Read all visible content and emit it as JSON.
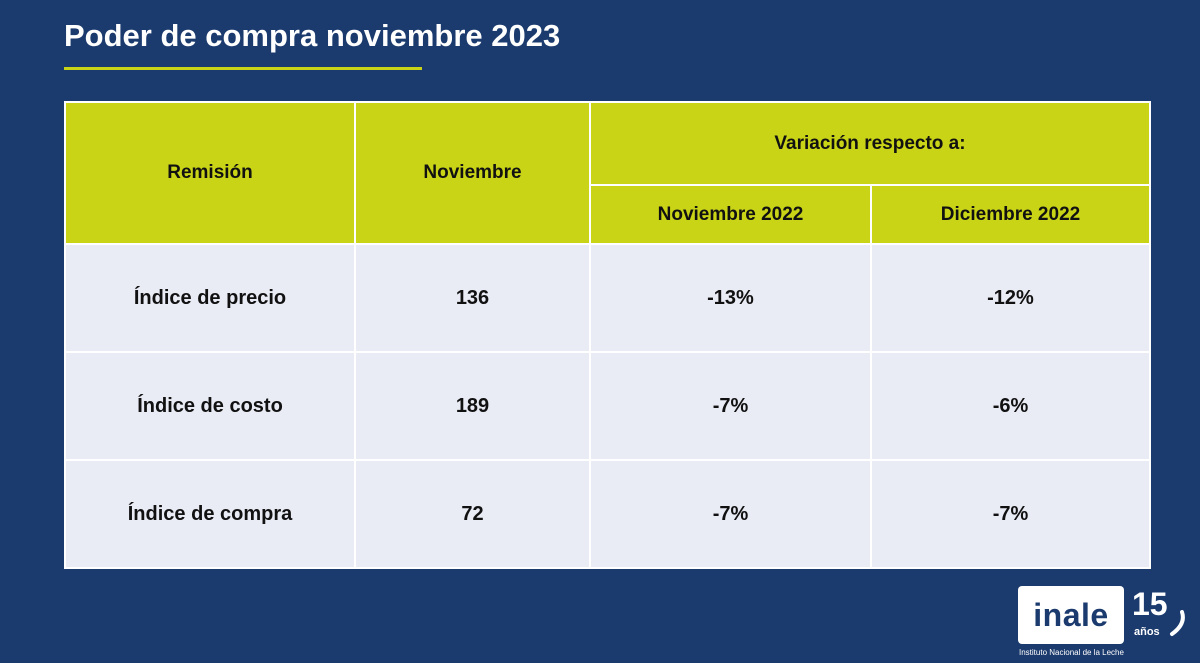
{
  "title": "Poder de compra noviembre 2023",
  "colors": {
    "background": "#1b3a6d",
    "accent": "#c9d416",
    "row_background": "#e9ebf5"
  },
  "table": {
    "headers": {
      "remision": "Remisión",
      "noviembre": "Noviembre",
      "variacion": "Variación respecto a:",
      "noviembre_2022": "Noviembre 2022",
      "diciembre_2022": "Diciembre 2022"
    },
    "rows": [
      {
        "label": "Índice de precio",
        "noviembre": "136",
        "var_nov_2022": "-13%",
        "var_dic_2022": "-12%"
      },
      {
        "label": "Índice de costo",
        "noviembre": "189",
        "var_nov_2022": "-7%",
        "var_dic_2022": "-6%"
      },
      {
        "label": "Índice de compra",
        "noviembre": "72",
        "var_nov_2022": "-7%",
        "var_dic_2022": "-7%"
      }
    ]
  },
  "logo": {
    "word": "inale",
    "number": "15",
    "years": "años",
    "tagline": "Instituto Nacional de la Leche"
  }
}
